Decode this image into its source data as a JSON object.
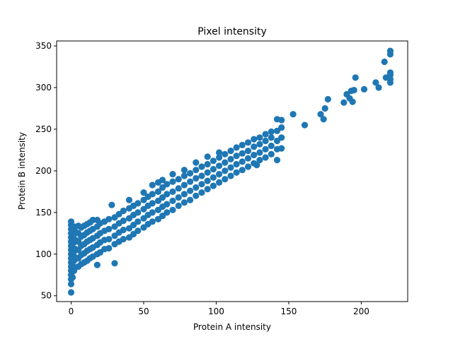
{
  "chart_data": {
    "type": "scatter",
    "title": "Pixel intensity",
    "xlabel": "Protein A intensity",
    "ylabel": "Protein B intensity",
    "xlim": [
      -10,
      232
    ],
    "ylim": [
      43,
      356
    ],
    "xticks": [
      0,
      50,
      100,
      150,
      200
    ],
    "yticks": [
      50,
      100,
      150,
      200,
      250,
      300,
      350
    ],
    "grid": false,
    "marker_color": "#1f77b4",
    "series": [
      {
        "points": [
          [
            0,
            54
          ],
          [
            0,
            64
          ],
          [
            0,
            70
          ],
          [
            0,
            75
          ],
          [
            0,
            80
          ],
          [
            0,
            85
          ],
          [
            0,
            90
          ],
          [
            0,
            95
          ],
          [
            0,
            100
          ],
          [
            0,
            105
          ],
          [
            0,
            110
          ],
          [
            0,
            115
          ],
          [
            0,
            120
          ],
          [
            0,
            125
          ],
          [
            0,
            130
          ],
          [
            0,
            135
          ],
          [
            0,
            139
          ],
          [
            1,
            72
          ],
          [
            1,
            86
          ],
          [
            1,
            97
          ],
          [
            1,
            108
          ],
          [
            1,
            119
          ],
          [
            1,
            128
          ],
          [
            2,
            80
          ],
          [
            2,
            92
          ],
          [
            2,
            103
          ],
          [
            2,
            114
          ],
          [
            2,
            124
          ],
          [
            2,
            133
          ],
          [
            3,
            84
          ],
          [
            3,
            96
          ],
          [
            3,
            106
          ],
          [
            3,
            117
          ],
          [
            3,
            127
          ],
          [
            5,
            85
          ],
          [
            5,
            95
          ],
          [
            5,
            105
          ],
          [
            5,
            115
          ],
          [
            5,
            125
          ],
          [
            5,
            134
          ],
          [
            7,
            88
          ],
          [
            7,
            99
          ],
          [
            7,
            110
          ],
          [
            7,
            121
          ],
          [
            7,
            132
          ],
          [
            9,
            90
          ],
          [
            9,
            101
          ],
          [
            9,
            112
          ],
          [
            9,
            123
          ],
          [
            9,
            134
          ],
          [
            11,
            92
          ],
          [
            11,
            104
          ],
          [
            11,
            115
          ],
          [
            11,
            126
          ],
          [
            11,
            136
          ],
          [
            13,
            95
          ],
          [
            13,
            106
          ],
          [
            13,
            117
          ],
          [
            13,
            128
          ],
          [
            13,
            138
          ],
          [
            15,
            97
          ],
          [
            15,
            108
          ],
          [
            15,
            119
          ],
          [
            15,
            130
          ],
          [
            15,
            141
          ],
          [
            18,
            87
          ],
          [
            18,
            100
          ],
          [
            18,
            111
          ],
          [
            18,
            122
          ],
          [
            18,
            133
          ],
          [
            18,
            141
          ],
          [
            20,
            102
          ],
          [
            20,
            114
          ],
          [
            20,
            125
          ],
          [
            20,
            137
          ],
          [
            23,
            106
          ],
          [
            23,
            117
          ],
          [
            23,
            128
          ],
          [
            23,
            139
          ],
          [
            26,
            107
          ],
          [
            26,
            118
          ],
          [
            26,
            130
          ],
          [
            26,
            142
          ],
          [
            28,
            159
          ],
          [
            30,
            89
          ],
          [
            30,
            112
          ],
          [
            30,
            122
          ],
          [
            30,
            133
          ],
          [
            30,
            144
          ],
          [
            33,
            115
          ],
          [
            33,
            126
          ],
          [
            33,
            137
          ],
          [
            33,
            148
          ],
          [
            36,
            118
          ],
          [
            36,
            129
          ],
          [
            36,
            140
          ],
          [
            36,
            152
          ],
          [
            40,
            120
          ],
          [
            40,
            131
          ],
          [
            40,
            143
          ],
          [
            40,
            155
          ],
          [
            40,
            165
          ],
          [
            43,
            124
          ],
          [
            43,
            135
          ],
          [
            43,
            147
          ],
          [
            43,
            158
          ],
          [
            46,
            128
          ],
          [
            46,
            139
          ],
          [
            46,
            150
          ],
          [
            46,
            161
          ],
          [
            50,
            132
          ],
          [
            50,
            143
          ],
          [
            50,
            154
          ],
          [
            50,
            165
          ],
          [
            50,
            174
          ],
          [
            53,
            136
          ],
          [
            53,
            147
          ],
          [
            53,
            158
          ],
          [
            53,
            169
          ],
          [
            56,
            139
          ],
          [
            56,
            150
          ],
          [
            56,
            161
          ],
          [
            56,
            172
          ],
          [
            56,
            183
          ],
          [
            60,
            142
          ],
          [
            60,
            153
          ],
          [
            60,
            164
          ],
          [
            60,
            175
          ],
          [
            60,
            186
          ],
          [
            63,
            146
          ],
          [
            63,
            157
          ],
          [
            63,
            168
          ],
          [
            63,
            180
          ],
          [
            63,
            189
          ],
          [
            66,
            150
          ],
          [
            66,
            160
          ],
          [
            66,
            172
          ],
          [
            66,
            184
          ],
          [
            70,
            153
          ],
          [
            70,
            164
          ],
          [
            70,
            175
          ],
          [
            70,
            187
          ],
          [
            70,
            196
          ],
          [
            74,
            158
          ],
          [
            74,
            168
          ],
          [
            74,
            179
          ],
          [
            74,
            190
          ],
          [
            78,
            162
          ],
          [
            78,
            172
          ],
          [
            78,
            183
          ],
          [
            78,
            194
          ],
          [
            78,
            201
          ],
          [
            82,
            165
          ],
          [
            82,
            176
          ],
          [
            82,
            187
          ],
          [
            82,
            197
          ],
          [
            86,
            170
          ],
          [
            86,
            180
          ],
          [
            86,
            191
          ],
          [
            86,
            201
          ],
          [
            86,
            210
          ],
          [
            90,
            174
          ],
          [
            90,
            184
          ],
          [
            90,
            194
          ],
          [
            90,
            205
          ],
          [
            94,
            178
          ],
          [
            94,
            188
          ],
          [
            94,
            198
          ],
          [
            94,
            208
          ],
          [
            94,
            217
          ],
          [
            98,
            182
          ],
          [
            98,
            192
          ],
          [
            98,
            202
          ],
          [
            98,
            212
          ],
          [
            102,
            186
          ],
          [
            102,
            196
          ],
          [
            102,
            206
          ],
          [
            102,
            216
          ],
          [
            102,
            222
          ],
          [
            106,
            190
          ],
          [
            106,
            200
          ],
          [
            106,
            210
          ],
          [
            106,
            220
          ],
          [
            110,
            194
          ],
          [
            110,
            204
          ],
          [
            110,
            214
          ],
          [
            110,
            224
          ],
          [
            114,
            198
          ],
          [
            114,
            208
          ],
          [
            114,
            218
          ],
          [
            114,
            228
          ],
          [
            118,
            201
          ],
          [
            118,
            211
          ],
          [
            118,
            221
          ],
          [
            118,
            231
          ],
          [
            122,
            205
          ],
          [
            122,
            215
          ],
          [
            122,
            224
          ],
          [
            122,
            234
          ],
          [
            126,
            209
          ],
          [
            126,
            219
          ],
          [
            126,
            229
          ],
          [
            126,
            238
          ],
          [
            128,
            207
          ],
          [
            130,
            213
          ],
          [
            130,
            222
          ],
          [
            130,
            232
          ],
          [
            130,
            240
          ],
          [
            134,
            216
          ],
          [
            134,
            226
          ],
          [
            134,
            236
          ],
          [
            134,
            244
          ],
          [
            138,
            220
          ],
          [
            138,
            230
          ],
          [
            138,
            240
          ],
          [
            138,
            247
          ],
          [
            142,
            213
          ],
          [
            142,
            226
          ],
          [
            142,
            236
          ],
          [
            142,
            248
          ],
          [
            142,
            262
          ],
          [
            145,
            227
          ],
          [
            145,
            240
          ],
          [
            145,
            252
          ],
          [
            145,
            261
          ],
          [
            153,
            268
          ],
          [
            161,
            255
          ],
          [
            172,
            268
          ],
          [
            174,
            262
          ],
          [
            175,
            275
          ],
          [
            177,
            286
          ],
          [
            188,
            282
          ],
          [
            190,
            292
          ],
          [
            192,
            287
          ],
          [
            193,
            296
          ],
          [
            194,
            283
          ],
          [
            195,
            297
          ],
          [
            196,
            312
          ],
          [
            202,
            298
          ],
          [
            210,
            306
          ],
          [
            212,
            300
          ],
          [
            216,
            331
          ],
          [
            217,
            312
          ],
          [
            220,
            306
          ],
          [
            220,
            310
          ],
          [
            220,
            315
          ],
          [
            220,
            318
          ],
          [
            220,
            340
          ],
          [
            220,
            344
          ]
        ]
      }
    ]
  }
}
